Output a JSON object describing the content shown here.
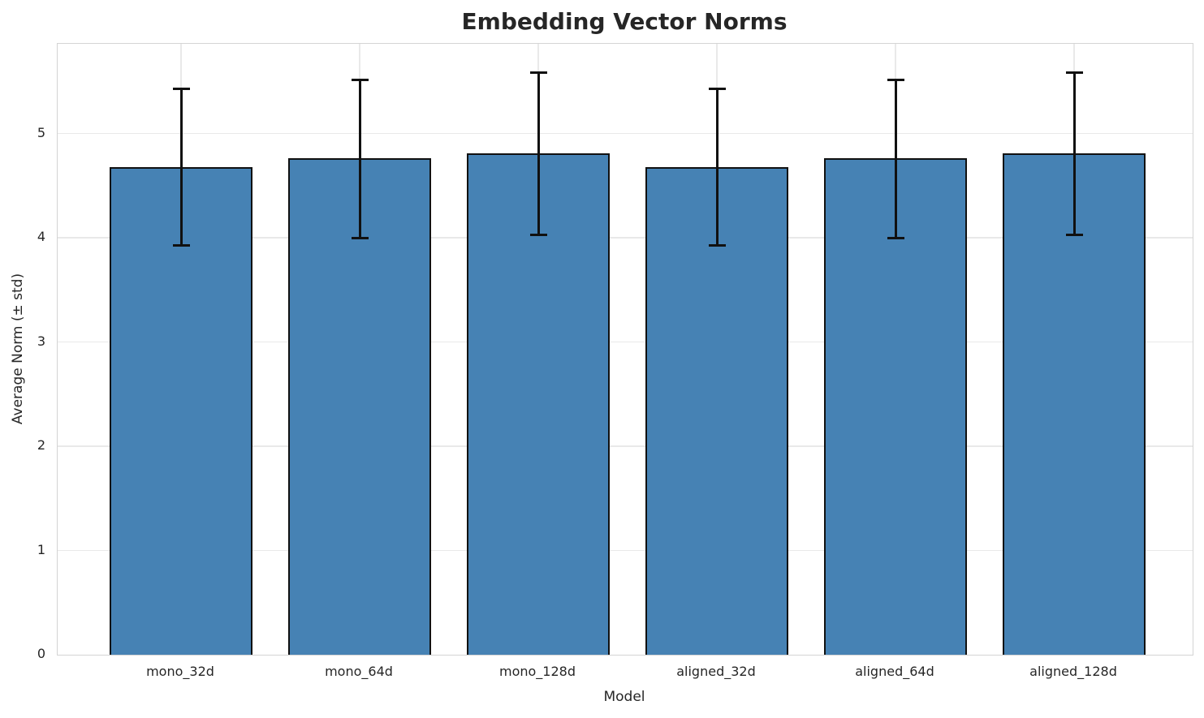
{
  "chart_data": {
    "type": "bar",
    "title": "Embedding Vector Norms",
    "xlabel": "Model",
    "ylabel": "Average Norm (± std)",
    "categories": [
      "mono_32d",
      "mono_64d",
      "mono_128d",
      "aligned_32d",
      "aligned_64d",
      "aligned_128d"
    ],
    "series": [
      {
        "name": "Average Norm",
        "values": [
          4.68,
          4.76,
          4.81,
          4.68,
          4.76,
          4.81
        ],
        "errors": [
          0.75,
          0.76,
          0.78,
          0.75,
          0.76,
          0.78
        ]
      }
    ],
    "yticks": [
      0,
      1,
      2,
      3,
      4,
      5
    ],
    "ylim": [
      0,
      5.86
    ],
    "grid": "both",
    "legend": "none",
    "bar_color": "#4682B4",
    "bar_edge_color": "#111111",
    "error_color": "#111111",
    "grid_color": "#e9e9e9",
    "spine_color": "#d4d4d4",
    "text_color": "#262626"
  }
}
